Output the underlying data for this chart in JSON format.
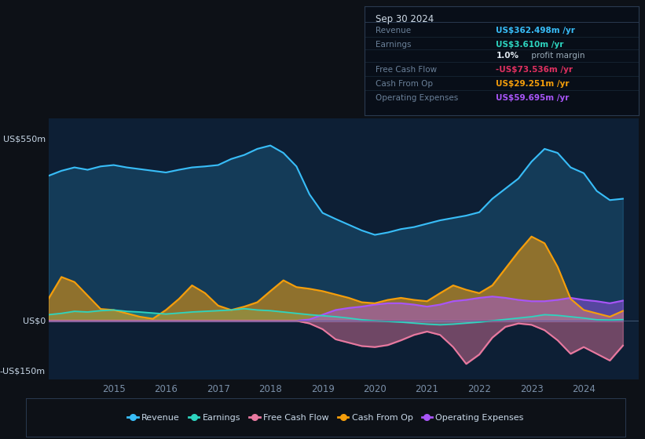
{
  "background_color": "#0d1117",
  "panel_bg": "#0d1f35",
  "title": "Sep 30 2024",
  "ylim": [
    -175,
    600
  ],
  "years": [
    2013.75,
    2014.0,
    2014.25,
    2014.5,
    2014.75,
    2015.0,
    2015.25,
    2015.5,
    2015.75,
    2016.0,
    2016.25,
    2016.5,
    2016.75,
    2017.0,
    2017.25,
    2017.5,
    2017.75,
    2018.0,
    2018.25,
    2018.5,
    2018.75,
    2019.0,
    2019.25,
    2019.5,
    2019.75,
    2020.0,
    2020.25,
    2020.5,
    2020.75,
    2021.0,
    2021.25,
    2021.5,
    2021.75,
    2022.0,
    2022.25,
    2022.5,
    2022.75,
    2023.0,
    2023.25,
    2023.5,
    2023.75,
    2024.0,
    2024.25,
    2024.5,
    2024.75
  ],
  "revenue": [
    430,
    445,
    455,
    448,
    458,
    462,
    455,
    450,
    445,
    440,
    448,
    455,
    458,
    462,
    480,
    492,
    510,
    520,
    498,
    458,
    375,
    320,
    302,
    285,
    268,
    255,
    262,
    272,
    278,
    288,
    298,
    305,
    312,
    322,
    362,
    392,
    422,
    472,
    510,
    498,
    455,
    438,
    385,
    358,
    362
  ],
  "earnings": [
    18,
    22,
    28,
    26,
    30,
    32,
    28,
    26,
    23,
    20,
    23,
    26,
    28,
    30,
    32,
    36,
    32,
    30,
    26,
    22,
    18,
    15,
    12,
    8,
    3,
    0,
    -2,
    -4,
    -7,
    -10,
    -12,
    -10,
    -7,
    -4,
    0,
    4,
    8,
    12,
    18,
    16,
    12,
    8,
    3,
    2,
    3.6
  ],
  "free_cash_flow": [
    0,
    0,
    0,
    0,
    0,
    0,
    0,
    0,
    0,
    0,
    0,
    0,
    0,
    0,
    0,
    0,
    0,
    0,
    0,
    0,
    -8,
    -25,
    -55,
    -65,
    -75,
    -78,
    -72,
    -58,
    -42,
    -32,
    -42,
    -78,
    -128,
    -100,
    -50,
    -18,
    -8,
    -12,
    -28,
    -58,
    -98,
    -78,
    -98,
    -118,
    -73.5
  ],
  "cash_from_op": [
    65,
    130,
    115,
    75,
    35,
    32,
    22,
    12,
    6,
    32,
    65,
    105,
    82,
    45,
    32,
    42,
    55,
    88,
    120,
    100,
    95,
    88,
    78,
    68,
    55,
    52,
    62,
    68,
    62,
    58,
    82,
    105,
    92,
    82,
    105,
    155,
    205,
    250,
    230,
    160,
    65,
    32,
    22,
    12,
    29.25
  ],
  "op_expenses": [
    0,
    0,
    0,
    0,
    0,
    0,
    0,
    0,
    0,
    0,
    0,
    0,
    0,
    0,
    0,
    0,
    0,
    0,
    0,
    0,
    4,
    18,
    32,
    38,
    42,
    48,
    52,
    52,
    48,
    42,
    48,
    58,
    62,
    68,
    72,
    68,
    62,
    58,
    58,
    62,
    68,
    62,
    58,
    52,
    59.7
  ],
  "colors": {
    "revenue": "#38bdf8",
    "earnings": "#2dd4bf",
    "free_cash_flow": "#e879a0",
    "cash_from_op": "#f59e0b",
    "op_expenses": "#a855f7"
  },
  "fill_alpha": {
    "revenue": 0.9,
    "earnings": 0.75,
    "free_cash_flow": 0.55,
    "cash_from_op": 0.75,
    "op_expenses": 0.55
  },
  "legend": [
    {
      "label": "Revenue",
      "color": "#38bdf8"
    },
    {
      "label": "Earnings",
      "color": "#2dd4bf"
    },
    {
      "label": "Free Cash Flow",
      "color": "#e879a0"
    },
    {
      "label": "Cash From Op",
      "color": "#f59e0b"
    },
    {
      "label": "Operating Expenses",
      "color": "#a855f7"
    }
  ],
  "info_box": {
    "date": "Sep 30 2024",
    "rows": [
      {
        "label": "Revenue",
        "value": "US$362.498m /yr",
        "value_color": "#38bdf8"
      },
      {
        "label": "Earnings",
        "value": "US$3.610m /yr",
        "value_color": "#2dd4bf"
      },
      {
        "label": "",
        "value": "1.0% profit margin",
        "value_color": "#cccccc",
        "bold_part": "1.0%"
      },
      {
        "label": "Free Cash Flow",
        "value": "-US$73.536m /yr",
        "value_color": "#e03060"
      },
      {
        "label": "Cash From Op",
        "value": "US$29.251m /yr",
        "value_color": "#f59e0b"
      },
      {
        "label": "Operating Expenses",
        "value": "US$59.695m /yr",
        "value_color": "#a855f7"
      }
    ]
  },
  "x_ticks": [
    2014,
    2015,
    2016,
    2017,
    2018,
    2019,
    2020,
    2021,
    2022,
    2023,
    2024
  ],
  "x_tick_labels": [
    "",
    "2015",
    "2016",
    "2017",
    "2018",
    "2019",
    "2020",
    "2021",
    "2022",
    "2023",
    "2024"
  ],
  "ytick_values": [
    550,
    0,
    -150
  ],
  "ytick_labels": [
    "US$550m",
    "US$0",
    "-US$150m"
  ],
  "grid_color": "#1a2a3f",
  "text_color": "#7a8fa8",
  "text_color_light": "#c8d8e8"
}
